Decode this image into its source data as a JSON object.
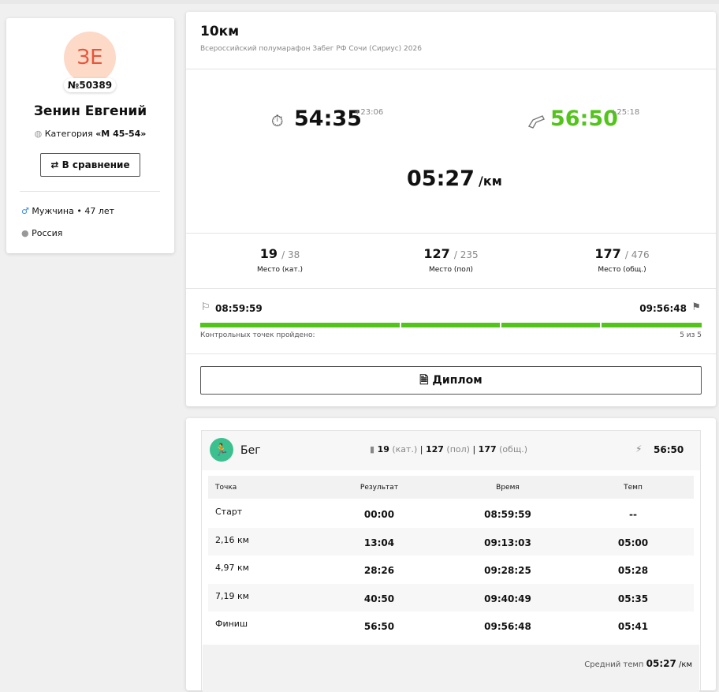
{
  "profile": {
    "initials": "ЗЕ",
    "bib": "№50389",
    "name": "Зенин Евгений",
    "category_label": "Категория",
    "category": "«М 45-54»",
    "compare_button": "В сравнение",
    "gender_age": "Мужчина • 47 лет",
    "country": "Россия"
  },
  "result": {
    "distance": "10км",
    "event": "Всероссийский полумарафон Забег РФ Сочи (Сириус) 2026",
    "net_time": "54:35",
    "net_diff": "+23:06",
    "gun_time": "56:50",
    "gun_diff": "+25:18",
    "pace": "05:27",
    "pace_unit": "/км",
    "places": [
      {
        "place": "19",
        "total": "/ 38",
        "label": "Место (кат.)"
      },
      {
        "place": "127",
        "total": "/ 235",
        "label": "Место (пол)"
      },
      {
        "place": "177",
        "total": "/ 476",
        "label": "Место (общ.)"
      }
    ],
    "start_time": "08:59:59",
    "finish_time": "09:56:48",
    "checkpoints_label": "Контрольных точек пройдено:",
    "checkpoints_count": "5 из 5",
    "diploma_button": "Диплом"
  },
  "splits": {
    "sport": "Бег",
    "places": [
      {
        "place": "19",
        "label": "(кат.)"
      },
      {
        "place": "127",
        "label": "(пол)"
      },
      {
        "place": "177",
        "label": "(общ.)"
      }
    ],
    "time": "56:50",
    "columns": [
      "Точка",
      "Результат",
      "Время",
      "Темп"
    ],
    "rows": [
      [
        "Старт",
        "00:00",
        "08:59:59",
        "--"
      ],
      [
        "2,16 км",
        "13:04",
        "09:13:03",
        "05:00"
      ],
      [
        "4,97 км",
        "28:26",
        "09:28:25",
        "05:28"
      ],
      [
        "7,19 км",
        "40:50",
        "09:40:49",
        "05:35"
      ],
      [
        "Финиш",
        "56:50",
        "09:56:48",
        "05:41"
      ]
    ],
    "avg_pace_label": "Средний темп",
    "avg_pace": "05:27",
    "avg_pace_unit": "/км"
  }
}
